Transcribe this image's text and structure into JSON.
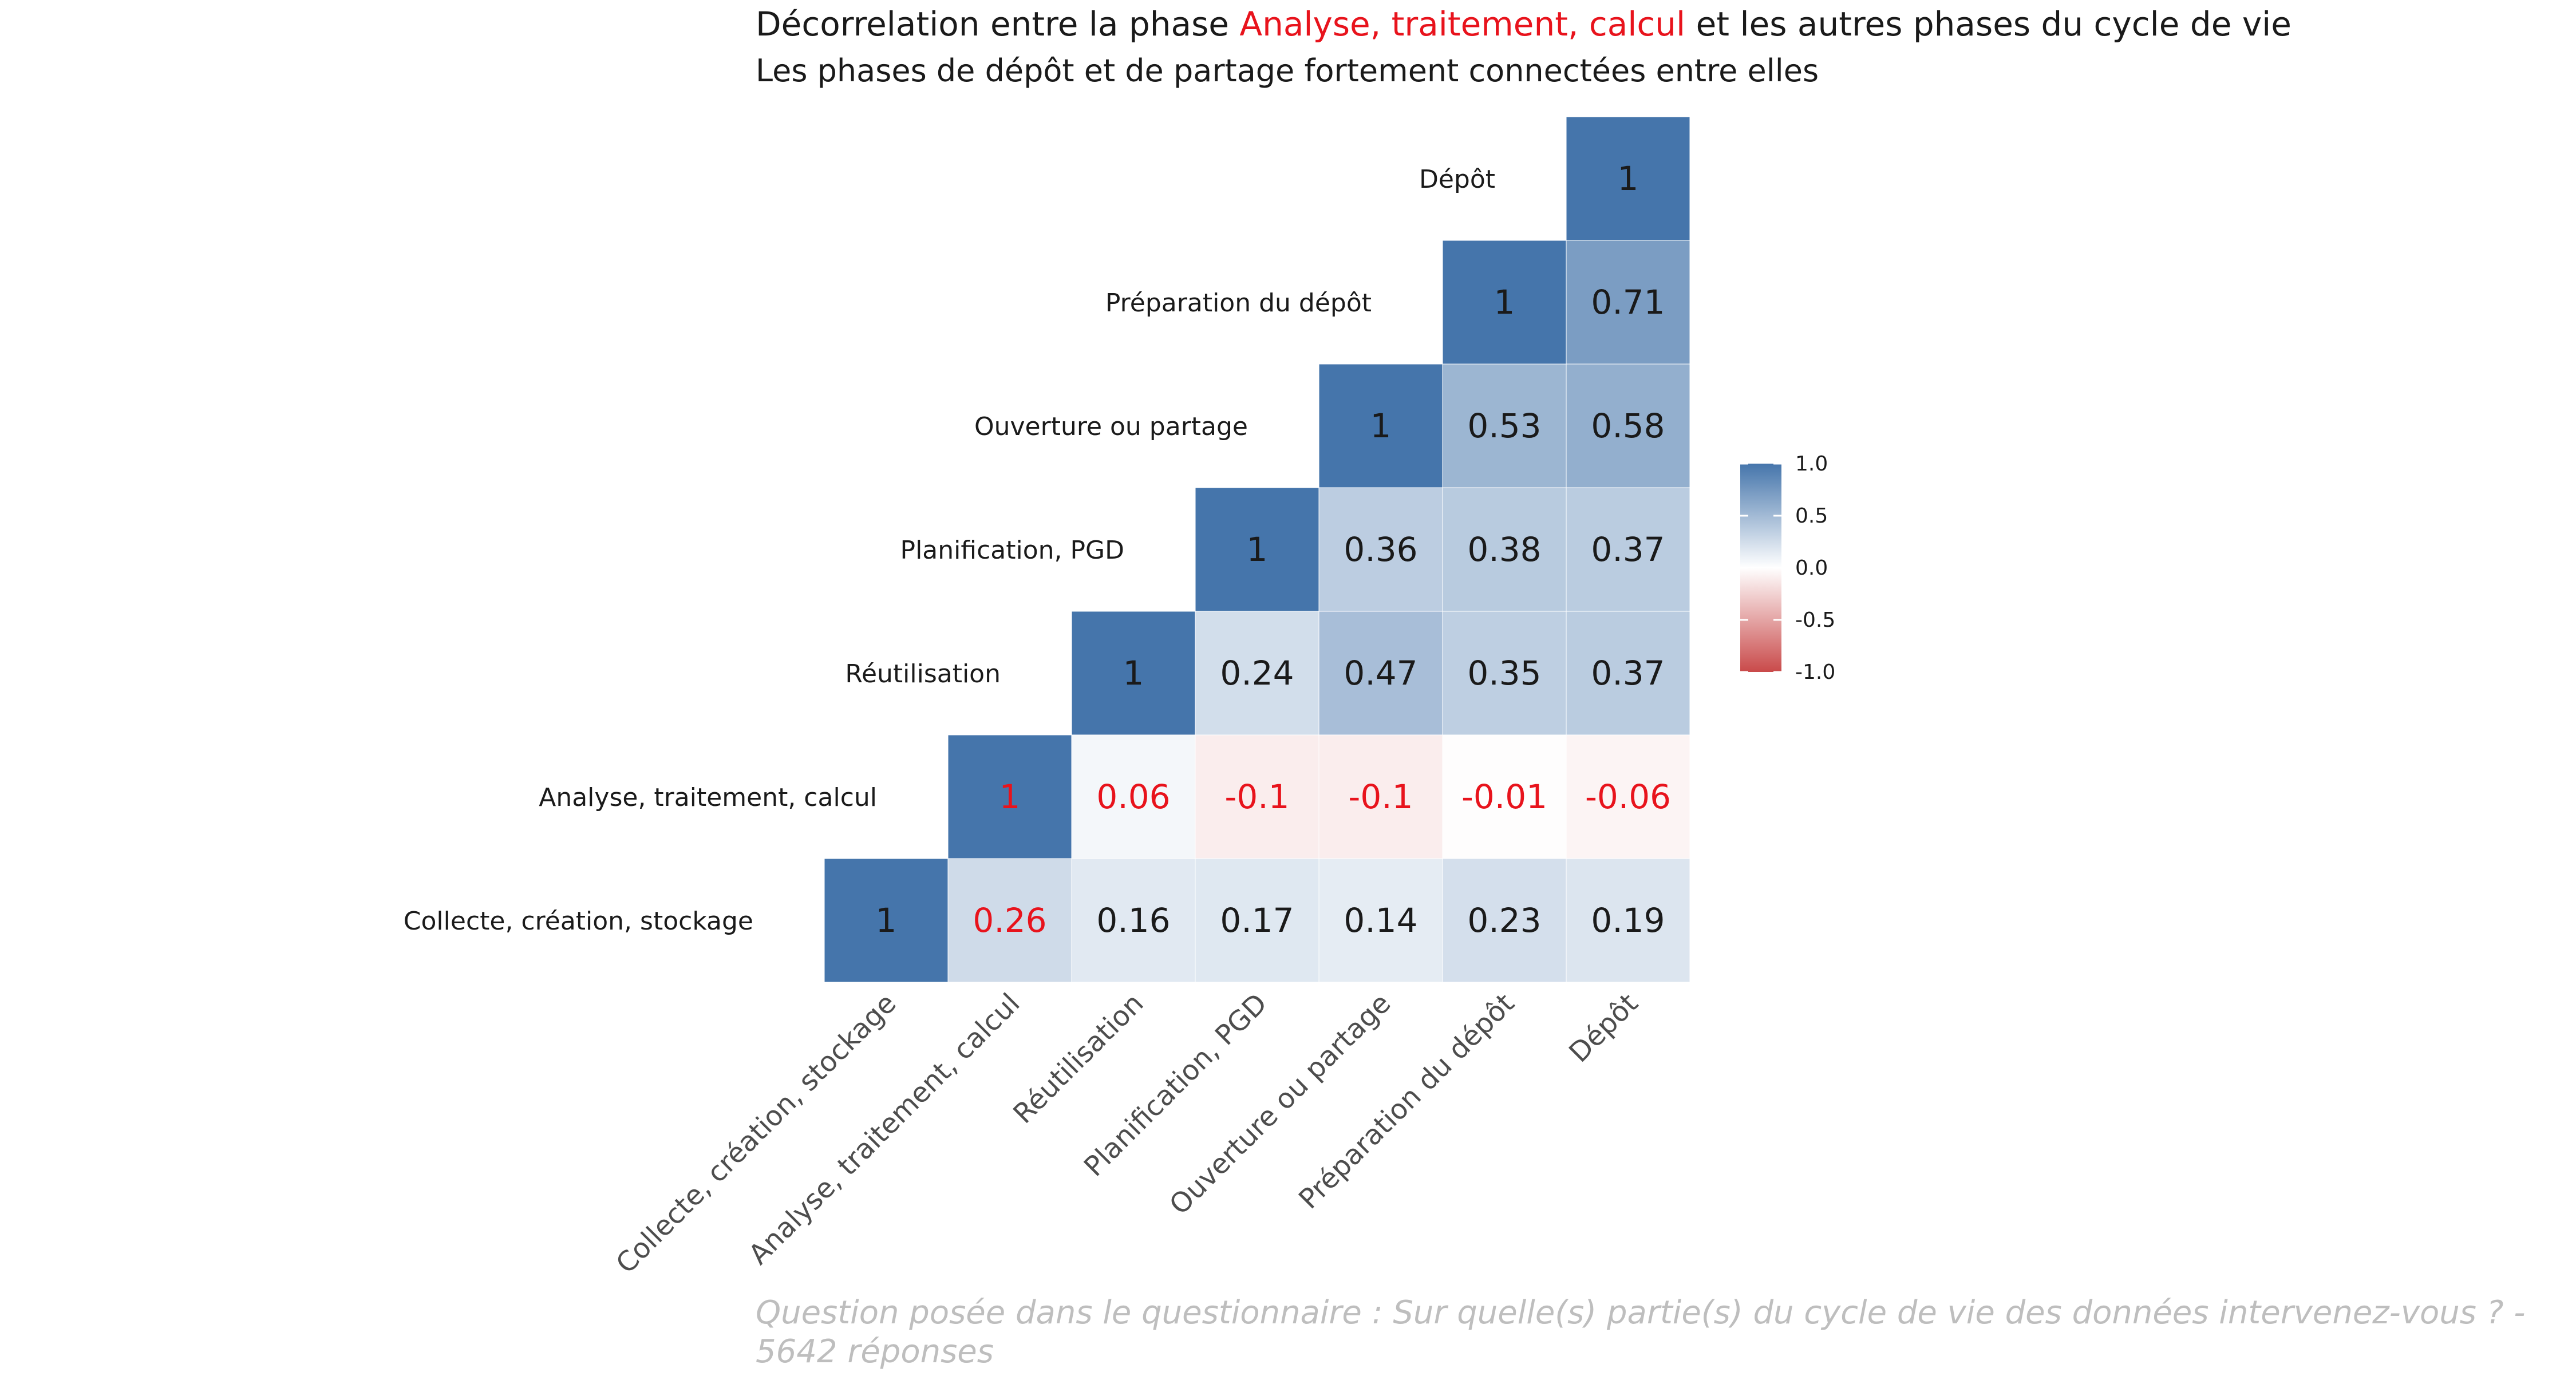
{
  "chart_data": {
    "type": "heatmap",
    "title": {
      "prefix": "Décorrelation entre la phase ",
      "highlight": "Analyse, traitement, calcul",
      "suffix": " et les autres phases du cycle de vie"
    },
    "subtitle": "Les phases de dépôt et de partage fortement connectées entre elles",
    "caption_lines": [
      "Question posée dans le questionnaire : Sur quelle(s) partie(s) du cycle de vie des données intervenez-vous ? -",
      "5642 réponses"
    ],
    "variables": [
      "Collecte, création, stockage",
      "Analyse, traitement, calcul",
      "Réutilisation",
      "Planification, PGD",
      "Ouverture ou partage",
      "Préparation du dépôt",
      "Dépôt"
    ],
    "highlight_variable": "Analyse, traitement, calcul",
    "matrix": [
      [
        1,
        0.26,
        0.16,
        0.17,
        0.14,
        0.23,
        0.19
      ],
      [
        null,
        1,
        0.06,
        -0.1,
        -0.1,
        -0.01,
        -0.06
      ],
      [
        null,
        null,
        1,
        0.24,
        0.47,
        0.35,
        0.37
      ],
      [
        null,
        null,
        null,
        1,
        0.36,
        0.38,
        0.37
      ],
      [
        null,
        null,
        null,
        null,
        1,
        0.53,
        0.58
      ],
      [
        null,
        null,
        null,
        null,
        null,
        1,
        0.71
      ],
      [
        null,
        null,
        null,
        null,
        null,
        null,
        1
      ]
    ],
    "legend": {
      "ticks": [
        "1.0",
        "0.5",
        "0.0",
        "-0.5",
        "-1.0"
      ],
      "range": [
        -1,
        1
      ],
      "placement": "right"
    },
    "colors": {
      "high": "#4575AB",
      "mid": "#FFFFFF",
      "low": "#C94A4A",
      "highlight_text": "#E8131C",
      "title_text": "#1a1a1a",
      "cell_text": "#1a1a1a",
      "caption_text": "#BEBEBE",
      "axis_text": "#4D4D4D"
    }
  }
}
